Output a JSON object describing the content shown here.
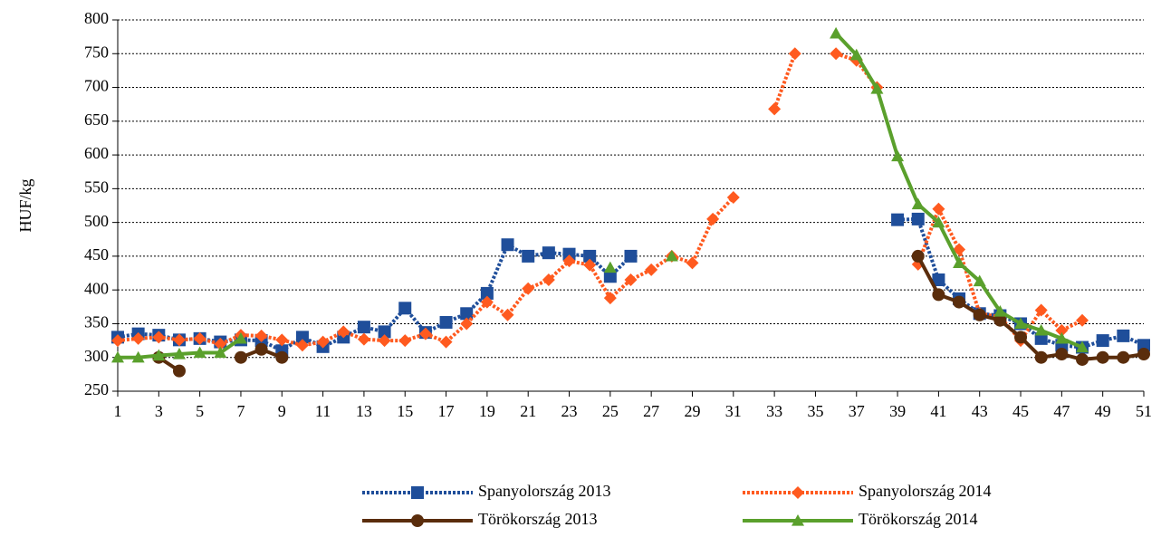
{
  "chart_data": {
    "type": "line",
    "ylabel": "HUF/kg",
    "x": [
      1,
      2,
      3,
      4,
      5,
      6,
      7,
      8,
      9,
      10,
      11,
      12,
      13,
      14,
      15,
      16,
      17,
      18,
      19,
      20,
      21,
      22,
      23,
      24,
      25,
      26,
      27,
      28,
      29,
      30,
      31,
      32,
      33,
      34,
      35,
      36,
      37,
      38,
      39,
      40,
      41,
      42,
      43,
      44,
      45,
      46,
      47,
      48,
      49,
      50,
      51
    ],
    "xlim": [
      1,
      51
    ],
    "xticks": [
      1,
      3,
      5,
      7,
      9,
      11,
      13,
      15,
      17,
      19,
      21,
      23,
      25,
      27,
      29,
      31,
      33,
      35,
      37,
      39,
      41,
      43,
      45,
      47,
      49,
      51
    ],
    "ylim": [
      250,
      800
    ],
    "yticks": [
      250,
      300,
      350,
      400,
      450,
      500,
      550,
      600,
      650,
      700,
      750,
      800
    ],
    "grid": true,
    "series": [
      {
        "name": "Spanyolország 2013",
        "color": "#1f4e9a",
        "marker": "square",
        "dashed": true,
        "values": [
          330,
          335,
          333,
          326,
          328,
          323,
          326,
          325,
          310,
          330,
          316,
          330,
          345,
          338,
          373,
          337,
          352,
          365,
          395,
          467,
          450,
          455,
          453,
          450,
          420,
          450,
          null,
          null,
          null,
          null,
          null,
          null,
          null,
          null,
          null,
          null,
          null,
          null,
          504,
          505,
          415,
          387,
          365,
          362,
          350,
          328,
          318,
          315,
          325,
          332,
          318
        ]
      },
      {
        "name": "Spanyolország 2014",
        "color": "#ff5a1f",
        "marker": "diamond",
        "dashed": true,
        "values": [
          325,
          328,
          330,
          326,
          328,
          320,
          333,
          332,
          326,
          318,
          323,
          338,
          327,
          325,
          325,
          335,
          323,
          350,
          382,
          363,
          402,
          415,
          443,
          437,
          388,
          415,
          430,
          450,
          440,
          505,
          537,
          null,
          668,
          750,
          null,
          750,
          740,
          700,
          null,
          438,
          520,
          460,
          365,
          360,
          325,
          370,
          340,
          355,
          null,
          null,
          null
        ]
      },
      {
        "name": "Törökország 2013",
        "color": "#5a2d0c",
        "marker": "circle",
        "dashed": false,
        "values": [
          null,
          null,
          300,
          280,
          null,
          null,
          300,
          312,
          300,
          null,
          null,
          null,
          null,
          null,
          null,
          null,
          null,
          null,
          null,
          null,
          null,
          null,
          null,
          null,
          null,
          null,
          null,
          null,
          null,
          null,
          null,
          null,
          null,
          null,
          null,
          null,
          null,
          null,
          null,
          450,
          393,
          382,
          363,
          355,
          330,
          300,
          305,
          297,
          300,
          300,
          305
        ]
      },
      {
        "name": "Törökország 2014",
        "color": "#5aa02c",
        "marker": "triangle",
        "dashed": false,
        "values": [
          300,
          300,
          303,
          305,
          307,
          307,
          328,
          null,
          null,
          null,
          null,
          null,
          null,
          null,
          null,
          null,
          null,
          null,
          null,
          null,
          null,
          null,
          null,
          null,
          433,
          null,
          null,
          450,
          null,
          null,
          null,
          null,
          null,
          null,
          null,
          780,
          748,
          698,
          598,
          527,
          500,
          440,
          413,
          368,
          350,
          340,
          328,
          315,
          null,
          null,
          null
        ]
      }
    ]
  }
}
